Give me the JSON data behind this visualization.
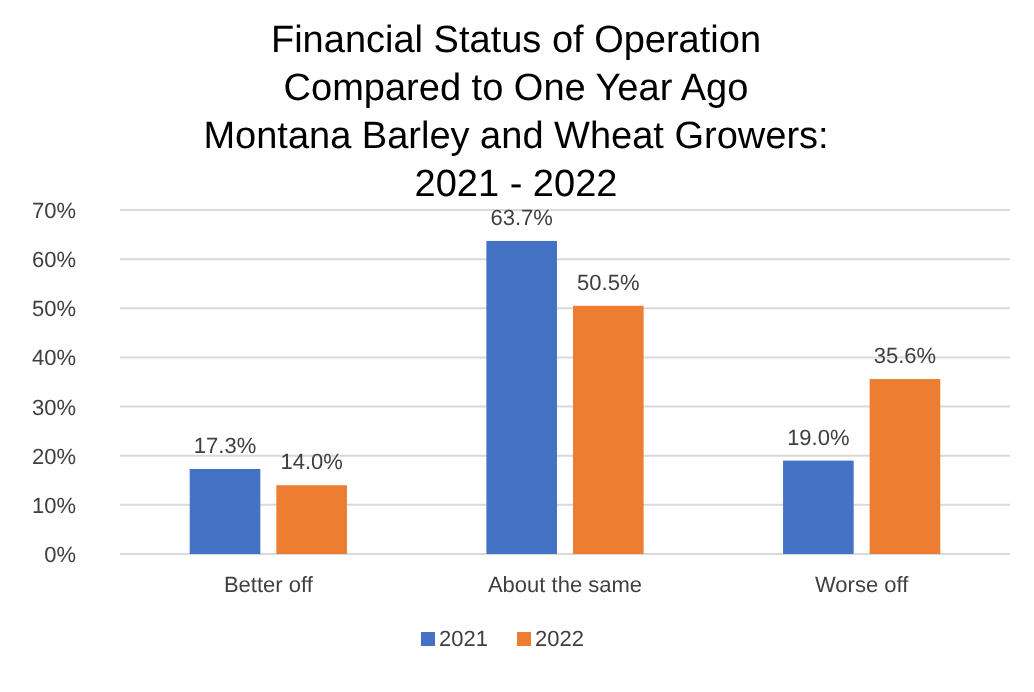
{
  "chart_data": {
    "type": "bar",
    "title": "Financial Status of Operation\nCompared to One Year Ago\nMontana Barley and Wheat Growers:\n2021 - 2022",
    "categories": [
      "Better off",
      "About the same",
      "Worse off"
    ],
    "series": [
      {
        "name": "2021",
        "color": "#4472c4",
        "values": [
          17.3,
          63.7,
          19.0
        ],
        "value_labels": [
          "17.3%",
          "63.7%",
          "19.0%"
        ]
      },
      {
        "name": "2022",
        "color": "#ed7d31",
        "values": [
          14.0,
          50.5,
          35.6
        ],
        "value_labels": [
          "14.0%",
          "50.5%",
          "35.6%"
        ]
      }
    ],
    "ylim": [
      0,
      70
    ],
    "yticks": [
      {
        "value": 0,
        "label": "0%"
      },
      {
        "value": 10,
        "label": "10%"
      },
      {
        "value": 20,
        "label": "20%"
      },
      {
        "value": 30,
        "label": "30%"
      },
      {
        "value": 40,
        "label": "40%"
      },
      {
        "value": 50,
        "label": "50%"
      },
      {
        "value": 60,
        "label": "60%"
      },
      {
        "value": 70,
        "label": "70%"
      }
    ],
    "grid": "y",
    "legend": "bottom"
  }
}
